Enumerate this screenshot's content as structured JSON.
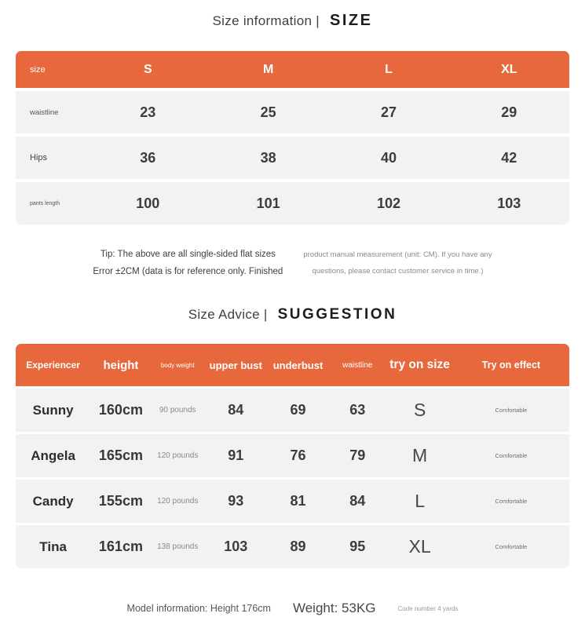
{
  "colors": {
    "accent": "#E7683C",
    "row_bg": "#F2F2F3",
    "page_bg": "#FFFFFF"
  },
  "section_size": {
    "title": "Size information |",
    "title_en": "SIZE",
    "table": {
      "header": {
        "label": "size",
        "cols": [
          "S",
          "M",
          "L",
          "XL"
        ]
      },
      "rows": [
        {
          "label": "waistline",
          "values": [
            "23",
            "25",
            "27",
            "29"
          ]
        },
        {
          "label": "Hips",
          "values": [
            "36",
            "38",
            "40",
            "42"
          ]
        },
        {
          "label": "pants length",
          "values": [
            "100",
            "101",
            "102",
            "103"
          ]
        }
      ]
    },
    "tip": {
      "left_line1": "Tip: The above are all single-sided flat sizes",
      "left_line2": "Error ±2CM (data is for reference only. Finished",
      "right_line1": "product manual measurement (unit: CM). If you have any",
      "right_line2": "questions, please contact customer service in time.)"
    }
  },
  "section_advice": {
    "title": "Size Advice |",
    "title_en": "SUGGESTION",
    "table": {
      "headers": [
        "Experiencer",
        "height",
        "body weight",
        "upper bust",
        "underbust",
        "waistline",
        "try on size",
        "Try on effect"
      ],
      "rows": [
        [
          "Sunny",
          "160cm",
          "90 pounds",
          "84",
          "69",
          "63",
          "S",
          "Comfortable"
        ],
        [
          "Angela",
          "165cm",
          "120 pounds",
          "91",
          "76",
          "79",
          "M",
          "Comfortable"
        ],
        [
          "Candy",
          "155cm",
          "120 pounds",
          "93",
          "81",
          "84",
          "L",
          "Comfortable"
        ],
        [
          "Tina",
          "161cm",
          "138 pounds",
          "103",
          "89",
          "95",
          "XL",
          "Comfortable"
        ]
      ]
    }
  },
  "footer": {
    "model_info": "Model information: Height 176cm",
    "weight": "Weight: 53KG",
    "code": "Code number 4 yards"
  }
}
